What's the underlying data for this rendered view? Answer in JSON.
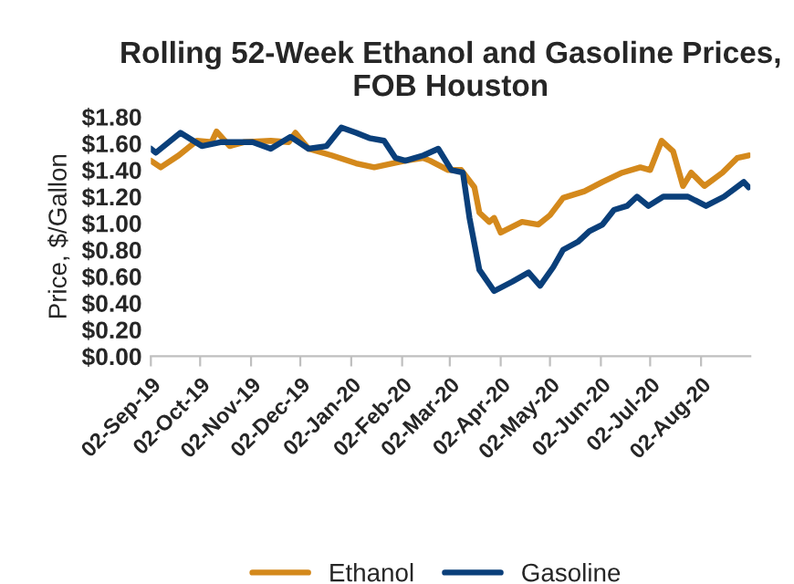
{
  "chart_data": {
    "type": "line",
    "title": "Rolling 52-Week Ethanol and Gasoline Prices, FOB Houston",
    "ylabel": "Price, $/Gallon",
    "xlim": [
      "2019-09-02",
      "2020-09-01"
    ],
    "xticks": [
      {
        "value": "2019-09-02",
        "label": "02-Sep-19"
      },
      {
        "value": "2019-10-02",
        "label": "02-Oct-19"
      },
      {
        "value": "2019-11-02",
        "label": "02-Nov-19"
      },
      {
        "value": "2019-12-02",
        "label": "02-Dec-19"
      },
      {
        "value": "2020-01-02",
        "label": "02-Jan-20"
      },
      {
        "value": "2020-02-02",
        "label": "02-Feb-20"
      },
      {
        "value": "2020-03-02",
        "label": "02-Mar-20"
      },
      {
        "value": "2020-04-02",
        "label": "02-Apr-20"
      },
      {
        "value": "2020-05-02",
        "label": "02-May-20"
      },
      {
        "value": "2020-06-02",
        "label": "02-Jun-20"
      },
      {
        "value": "2020-07-02",
        "label": "02-Jul-20"
      },
      {
        "value": "2020-08-02",
        "label": "02-Aug-20"
      }
    ],
    "ylim": [
      0,
      1.8
    ],
    "yticks": [
      {
        "value": 0,
        "label": "$0.00"
      },
      {
        "value": 0.2,
        "label": "$0.20"
      },
      {
        "value": 0.4,
        "label": "$0.40"
      },
      {
        "value": 0.6,
        "label": "$0.60"
      },
      {
        "value": 0.8,
        "label": "$0.80"
      },
      {
        "value": 1.0,
        "label": "$1.00"
      },
      {
        "value": 1.2,
        "label": "$1.20"
      },
      {
        "value": 1.4,
        "label": "$1.40"
      },
      {
        "value": 1.6,
        "label": "$1.60"
      },
      {
        "value": 1.8,
        "label": "$1.80"
      }
    ],
    "grid": false,
    "legend": "bottom",
    "marker": "none",
    "line_style": "solid",
    "series": [
      {
        "name": "Ethanol",
        "color": "#d4891c",
        "x": [
          "2019-09-02",
          "2019-09-08",
          "2019-09-19",
          "2019-09-30",
          "2019-10-09",
          "2019-10-12",
          "2019-10-20",
          "2019-10-29",
          "2019-11-14",
          "2019-11-25",
          "2019-11-29",
          "2019-12-07",
          "2019-12-21",
          "2020-01-05",
          "2020-01-16",
          "2020-01-27",
          "2020-02-04",
          "2020-02-15",
          "2020-02-19",
          "2020-03-01",
          "2020-03-09",
          "2020-03-17",
          "2020-03-20",
          "2020-03-26",
          "2020-03-29",
          "2020-04-02",
          "2020-04-15",
          "2020-04-25",
          "2020-05-02",
          "2020-05-10",
          "2020-05-23",
          "2020-06-03",
          "2020-06-15",
          "2020-06-26",
          "2020-07-02",
          "2020-07-09",
          "2020-07-16",
          "2020-07-22",
          "2020-07-27",
          "2020-08-04",
          "2020-08-15",
          "2020-08-24",
          "2020-08-31"
        ],
        "values": [
          1.47,
          1.42,
          1.51,
          1.62,
          1.61,
          1.69,
          1.58,
          1.61,
          1.62,
          1.61,
          1.68,
          1.56,
          1.51,
          1.45,
          1.42,
          1.45,
          1.47,
          1.49,
          1.47,
          1.4,
          1.4,
          1.27,
          1.08,
          1.01,
          1.04,
          0.93,
          1.01,
          0.99,
          1.06,
          1.19,
          1.24,
          1.31,
          1.38,
          1.42,
          1.4,
          1.62,
          1.54,
          1.28,
          1.38,
          1.28,
          1.38,
          1.49,
          1.51
        ]
      },
      {
        "name": "Gasoline",
        "color": "#0a3f7a",
        "x": [
          "2019-09-02",
          "2019-09-05",
          "2019-09-20",
          "2019-10-03",
          "2019-10-15",
          "2019-11-03",
          "2019-11-14",
          "2019-11-26",
          "2019-12-07",
          "2019-12-18",
          "2019-12-27",
          "2020-01-05",
          "2020-01-13",
          "2020-01-22",
          "2020-01-29",
          "2020-02-04",
          "2020-02-15",
          "2020-02-24",
          "2020-03-03",
          "2020-03-10",
          "2020-03-14",
          "2020-03-20",
          "2020-03-29",
          "2020-04-09",
          "2020-04-19",
          "2020-04-26",
          "2020-05-04",
          "2020-05-10",
          "2020-05-19",
          "2020-05-26",
          "2020-06-03",
          "2020-06-10",
          "2020-06-18",
          "2020-06-24",
          "2020-07-01",
          "2020-07-10",
          "2020-07-25",
          "2020-08-05",
          "2020-08-16",
          "2020-08-28",
          "2020-08-31"
        ],
        "values": [
          1.56,
          1.53,
          1.68,
          1.58,
          1.61,
          1.61,
          1.56,
          1.65,
          1.56,
          1.58,
          1.72,
          1.68,
          1.64,
          1.62,
          1.49,
          1.47,
          1.51,
          1.56,
          1.4,
          1.38,
          1.04,
          0.65,
          0.49,
          0.56,
          0.63,
          0.53,
          0.67,
          0.8,
          0.86,
          0.94,
          0.99,
          1.1,
          1.13,
          1.2,
          1.13,
          1.2,
          1.2,
          1.13,
          1.2,
          1.31,
          1.27
        ]
      }
    ]
  }
}
